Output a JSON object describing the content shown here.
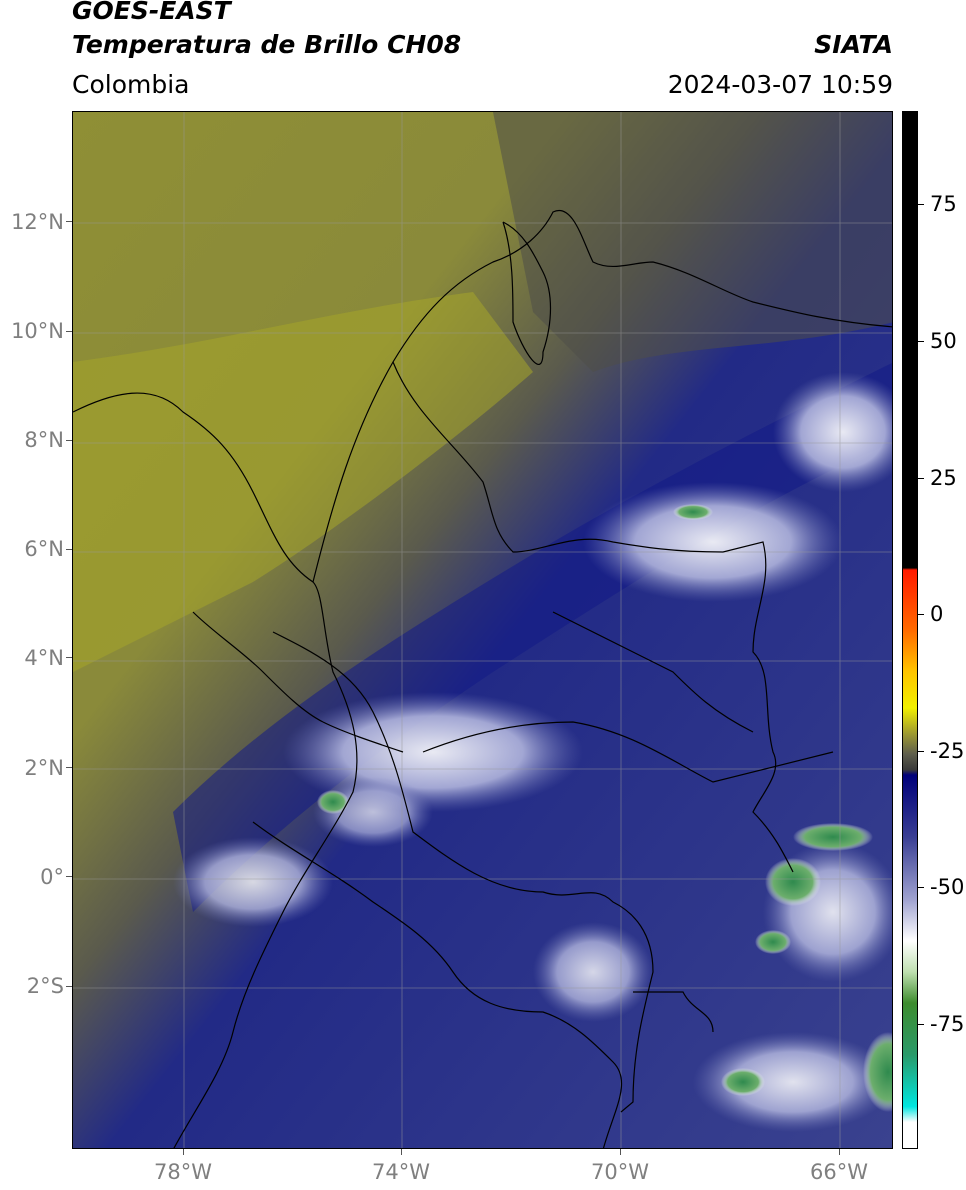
{
  "header": {
    "line1": "GOES-EAST",
    "line2": "Temperatura de Brillo CH08",
    "brand": "SIATA",
    "region": "Colombia",
    "datetime": "2024-03-07 10:59"
  },
  "axes": {
    "lat_ticks": [
      "12°N",
      "10°N",
      "8°N",
      "6°N",
      "4°N",
      "2°N",
      "0°",
      "2°S"
    ],
    "lon_ticks": [
      "78°W",
      "74°W",
      "70°W",
      "66°W"
    ]
  },
  "colorbar": {
    "ticks": [
      "75",
      "50",
      "25",
      "0",
      "-25",
      "-50",
      "-75"
    ]
  },
  "colors": {
    "warm_dry": "#9a9a2c",
    "mid": "#5a5a4a",
    "cold_blue": "#1b2489",
    "cloud_white": "#e8e8f5",
    "cold_green": "#2e8b57"
  }
}
